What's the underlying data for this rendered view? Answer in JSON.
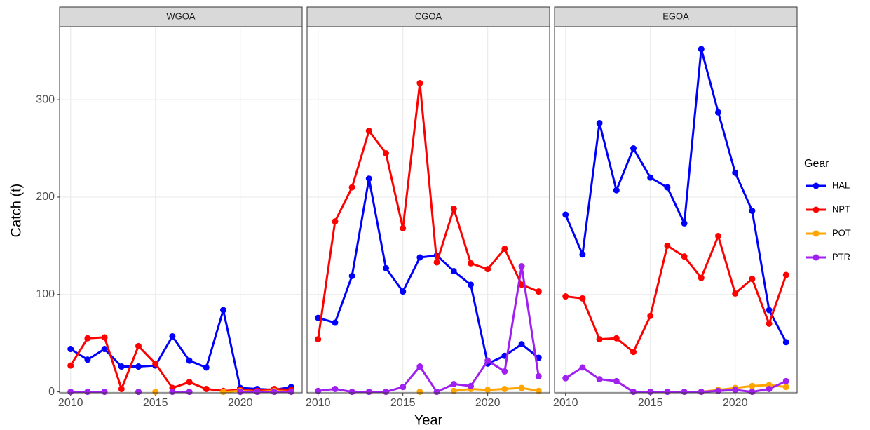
{
  "chart_data": {
    "type": "line",
    "x_label": "Year",
    "y_label": "Catch (t)",
    "legend_title": "Gear",
    "legend": [
      {
        "name": "HAL",
        "color": "#0000ff"
      },
      {
        "name": "NPT",
        "color": "#ff0000"
      },
      {
        "name": "POT",
        "color": "#ffa500"
      },
      {
        "name": "PTR",
        "color": "#a020f0"
      }
    ],
    "x": [
      2010,
      2011,
      2012,
      2013,
      2014,
      2015,
      2016,
      2017,
      2018,
      2019,
      2020,
      2021,
      2022,
      2023
    ],
    "xlim": [
      2009.35,
      2023.65
    ],
    "xticks": [
      2010,
      2015,
      2020
    ],
    "ylim": [
      -1,
      375
    ],
    "yticks": [
      0,
      100,
      200,
      300
    ],
    "grid": true,
    "panels": [
      {
        "title": "WGOA",
        "series": [
          {
            "values": [
              44,
              33,
              44,
              26,
              26,
              27,
              57,
              32,
              25,
              84,
              4,
              3,
              2,
              5
            ]
          },
          {
            "values": [
              27,
              55,
              56,
              3,
              47,
              29,
              4,
              10,
              3,
              1,
              2,
              1,
              3,
              2
            ]
          },
          {
            "values": [
              null,
              null,
              null,
              null,
              null,
              0,
              null,
              null,
              null,
              0,
              1,
              0,
              1,
              0
            ]
          },
          {
            "values": [
              0,
              0,
              0,
              null,
              0,
              null,
              0,
              0,
              null,
              null,
              0,
              0,
              0,
              0
            ]
          }
        ]
      },
      {
        "title": "CGOA",
        "series": [
          {
            "values": [
              76,
              71,
              119,
              219,
              127,
              103,
              138,
              140,
              124,
              110,
              29,
              37,
              49,
              35
            ]
          },
          {
            "values": [
              54,
              175,
              210,
              268,
              245,
              168,
              317,
              133,
              188,
              132,
              126,
              147,
              110,
              103
            ]
          },
          {
            "values": [
              null,
              null,
              null,
              null,
              null,
              null,
              0,
              null,
              1,
              3,
              2,
              3,
              4,
              1
            ]
          },
          {
            "values": [
              1,
              3,
              0,
              0,
              0,
              5,
              26,
              0,
              8,
              6,
              32,
              21,
              129,
              16
            ]
          }
        ]
      },
      {
        "title": "EGOA",
        "series": [
          {
            "values": [
              182,
              141,
              276,
              207,
              250,
              220,
              210,
              173,
              352,
              287,
              225,
              186,
              84,
              51
            ]
          },
          {
            "values": [
              98,
              96,
              54,
              55,
              41,
              78,
              150,
              139,
              117,
              160,
              101,
              116,
              70,
              120
            ]
          },
          {
            "values": [
              null,
              null,
              null,
              null,
              null,
              null,
              null,
              0,
              0,
              2,
              4,
              6,
              7,
              5
            ]
          },
          {
            "values": [
              14,
              25,
              13,
              11,
              0,
              0,
              0,
              0,
              0,
              1,
              2,
              0,
              3,
              11
            ]
          }
        ]
      }
    ]
  }
}
